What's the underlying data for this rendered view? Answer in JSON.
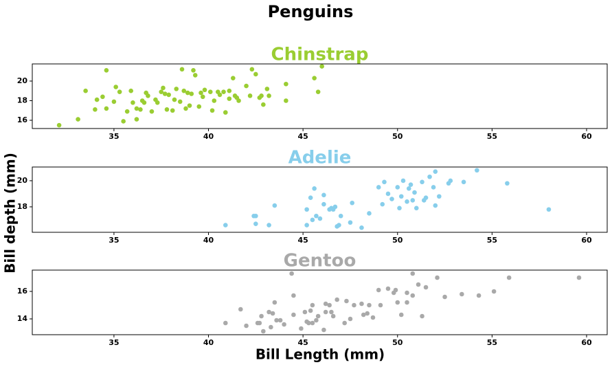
{
  "title": "Penguins",
  "xlabel": "Bill Length (mm)",
  "ylabel": "Bill depth (mm)",
  "chart_data": [
    {
      "type": "scatter",
      "title": "Chinstrap",
      "color": "#9acd32",
      "x": [
        32.1,
        33.1,
        33.5,
        34.0,
        34.1,
        34.4,
        34.6,
        34.6,
        35.0,
        35.1,
        35.3,
        35.5,
        35.7,
        35.9,
        36.0,
        36.2,
        36.2,
        36.4,
        36.5,
        36.6,
        36.7,
        36.8,
        37.0,
        37.2,
        37.3,
        37.5,
        37.6,
        37.7,
        37.8,
        37.9,
        38.1,
        38.2,
        38.3,
        38.5,
        38.6,
        38.7,
        38.8,
        38.9,
        39.0,
        39.1,
        39.2,
        39.3,
        39.5,
        39.6,
        39.7,
        39.8,
        40.1,
        40.2,
        40.3,
        40.5,
        40.6,
        40.8,
        40.9,
        41.1,
        41.1,
        41.3,
        41.4,
        41.5,
        41.6,
        42.0,
        42.2,
        42.3,
        42.5,
        42.7,
        42.8,
        42.9,
        43.1,
        43.2,
        44.1,
        44.1,
        45.6,
        45.8,
        46.0
      ],
      "y": [
        15.5,
        16.1,
        19.0,
        17.1,
        18.1,
        18.4,
        21.1,
        17.2,
        17.9,
        19.4,
        18.9,
        15.9,
        16.9,
        19.0,
        17.8,
        16.1,
        17.2,
        17.1,
        18.0,
        17.8,
        18.8,
        18.5,
        16.9,
        18.1,
        17.8,
        18.9,
        19.3,
        18.7,
        17.1,
        18.6,
        17.0,
        18.1,
        19.2,
        17.9,
        21.2,
        19.0,
        17.2,
        18.8,
        17.5,
        18.7,
        21.1,
        20.6,
        17.4,
        18.8,
        18.4,
        19.1,
        18.9,
        17.0,
        18.0,
        18.9,
        18.6,
        18.9,
        16.8,
        18.2,
        19.0,
        20.3,
        18.5,
        18.3,
        18.0,
        19.5,
        18.5,
        21.2,
        20.7,
        18.3,
        18.5,
        17.6,
        19.2,
        18.5,
        19.7,
        18.0,
        20.3,
        18.9,
        21.5
      ],
      "xlim": [
        30.68,
        61.09
      ],
      "ylim": [
        15.16,
        21.75
      ],
      "xticks": [
        35,
        40,
        45,
        50,
        55,
        60
      ],
      "yticks": [
        16,
        18,
        20
      ]
    },
    {
      "type": "scatter",
      "title": "Adelie",
      "color": "#87ceeb",
      "x": [
        40.9,
        42.4,
        42.5,
        42.5,
        43.2,
        43.5,
        45.2,
        45.2,
        45.4,
        45.5,
        45.6,
        45.7,
        45.9,
        46.1,
        46.1,
        46.4,
        46.5,
        46.6,
        46.7,
        46.8,
        46.9,
        47.0,
        47.5,
        47.6,
        48.1,
        48.5,
        49.0,
        49.2,
        49.3,
        49.5,
        49.7,
        50.0,
        50.1,
        50.2,
        50.3,
        50.5,
        50.6,
        50.7,
        50.8,
        50.9,
        51.0,
        51.3,
        51.4,
        51.5,
        51.7,
        51.9,
        52.0,
        52.0,
        52.2,
        52.7,
        52.8,
        53.5,
        54.2,
        55.8,
        58.0
      ],
      "y": [
        16.6,
        17.3,
        16.7,
        17.3,
        16.6,
        18.1,
        17.8,
        16.6,
        18.7,
        17.0,
        19.4,
        17.3,
        17.1,
        18.2,
        18.9,
        17.8,
        17.9,
        17.8,
        18.0,
        16.5,
        16.6,
        17.3,
        16.8,
        18.3,
        16.4,
        17.5,
        19.5,
        18.2,
        19.9,
        19.0,
        18.6,
        19.5,
        17.9,
        18.8,
        20.0,
        18.4,
        19.4,
        19.7,
        18.5,
        19.1,
        17.9,
        19.9,
        18.5,
        18.7,
        20.3,
        19.5,
        18.1,
        20.7,
        18.8,
        19.8,
        20.0,
        19.9,
        20.8,
        19.8,
        17.8
      ],
      "xlim": [
        30.68,
        61.09
      ],
      "ylim": [
        16.05,
        21.05
      ],
      "xticks": [
        35,
        40,
        45,
        50,
        55,
        60
      ],
      "yticks": [
        18,
        20
      ]
    },
    {
      "type": "scatter",
      "title": "Gentoo",
      "color": "#a9a9a9",
      "x": [
        40.9,
        41.7,
        42.0,
        42.6,
        42.7,
        42.8,
        42.9,
        43.2,
        43.3,
        43.4,
        43.5,
        43.6,
        43.8,
        44.0,
        44.4,
        44.5,
        44.5,
        44.9,
        45.1,
        45.2,
        45.3,
        45.4,
        45.5,
        45.5,
        45.7,
        45.8,
        46.1,
        46.2,
        46.2,
        46.4,
        46.5,
        46.6,
        46.8,
        47.2,
        47.3,
        47.5,
        47.7,
        48.1,
        48.2,
        48.4,
        48.5,
        48.7,
        49.0,
        49.1,
        49.5,
        49.8,
        49.9,
        50.0,
        50.2,
        50.5,
        50.5,
        50.8,
        50.8,
        51.1,
        51.3,
        51.5,
        52.1,
        52.5,
        53.4,
        54.3,
        55.1,
        55.9,
        59.6
      ],
      "y": [
        13.7,
        14.7,
        13.5,
        13.7,
        13.7,
        14.2,
        13.1,
        14.5,
        13.4,
        14.4,
        15.2,
        13.9,
        13.9,
        13.6,
        17.3,
        14.3,
        15.7,
        13.3,
        14.5,
        13.8,
        13.7,
        14.6,
        13.7,
        15.0,
        13.9,
        14.2,
        13.2,
        14.5,
        15.1,
        15.0,
        14.5,
        14.2,
        15.4,
        13.7,
        15.3,
        14.0,
        15.0,
        15.1,
        14.3,
        14.4,
        15.0,
        14.1,
        16.1,
        15.0,
        16.2,
        15.9,
        16.1,
        15.2,
        14.3,
        15.9,
        15.2,
        15.7,
        17.3,
        16.5,
        14.2,
        16.3,
        17.0,
        15.6,
        15.8,
        15.7,
        16.0,
        17.0,
        17.0
      ],
      "xlim": [
        30.68,
        61.09
      ],
      "ylim": [
        12.85,
        17.55
      ],
      "xticks": [
        35,
        40,
        45,
        50,
        55,
        60
      ],
      "yticks": [
        14,
        16
      ]
    }
  ]
}
